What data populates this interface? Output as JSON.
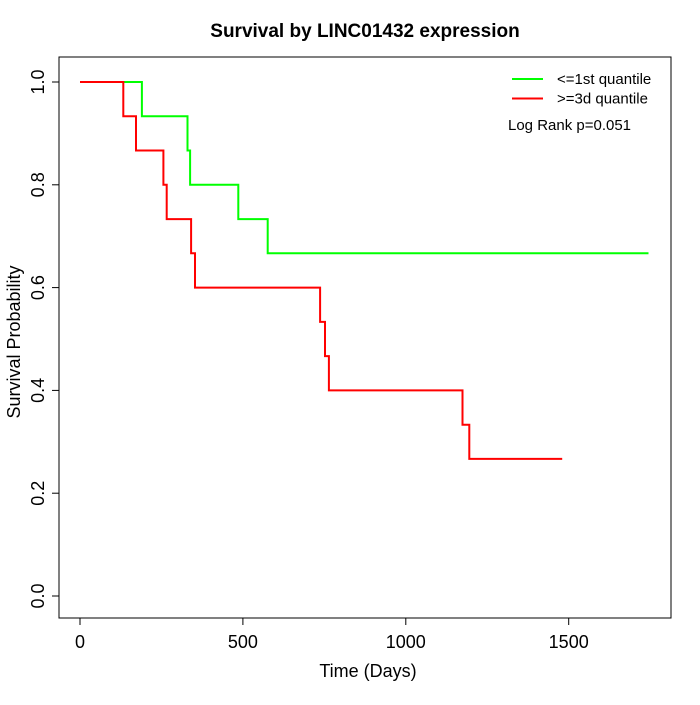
{
  "chart_data": {
    "type": "line",
    "subtype": "kaplan-meier-step",
    "title": "Survival by LINC01432 expression",
    "xlabel": "Time (Days)",
    "ylabel": "Survival Probability",
    "annotation": "Log Rank p=0.051",
    "legend_position": "top-right-inside",
    "grid": false,
    "xlim": [
      0,
      1814
    ],
    "ylim": [
      0,
      1
    ],
    "xticks": [
      {
        "value": 0,
        "label": "0"
      },
      {
        "value": 500,
        "label": "500"
      },
      {
        "value": 1000,
        "label": "1000"
      },
      {
        "value": 1500,
        "label": "1500"
      }
    ],
    "yticks": [
      {
        "value": 0.0,
        "label": "0.0"
      },
      {
        "value": 0.2,
        "label": "0.2"
      },
      {
        "value": 0.4,
        "label": "0.4"
      },
      {
        "value": 0.6,
        "label": "0.6"
      },
      {
        "value": 0.8,
        "label": "0.8"
      },
      {
        "value": 1.0,
        "label": "1.0"
      }
    ],
    "series": [
      {
        "name": "<=1st quantile",
        "color": "#00ff00",
        "steps": [
          [
            0,
            1.0
          ],
          [
            190,
            0.9333
          ],
          [
            330,
            0.8667
          ],
          [
            338,
            0.8
          ],
          [
            486,
            0.7333
          ],
          [
            576,
            0.6667
          ]
        ],
        "end_time": 1745
      },
      {
        "name": ">=3d quantile",
        "color": "#ff0000",
        "steps": [
          [
            0,
            1.0
          ],
          [
            133,
            0.9333
          ],
          [
            172,
            0.8667
          ],
          [
            256,
            0.8
          ],
          [
            266,
            0.7333
          ],
          [
            341,
            0.6667
          ],
          [
            353,
            0.6
          ],
          [
            737,
            0.5333
          ],
          [
            752,
            0.4667
          ],
          [
            764,
            0.4
          ],
          [
            1174,
            0.3333
          ],
          [
            1195,
            0.2667
          ]
        ],
        "end_time": 1480
      }
    ]
  }
}
